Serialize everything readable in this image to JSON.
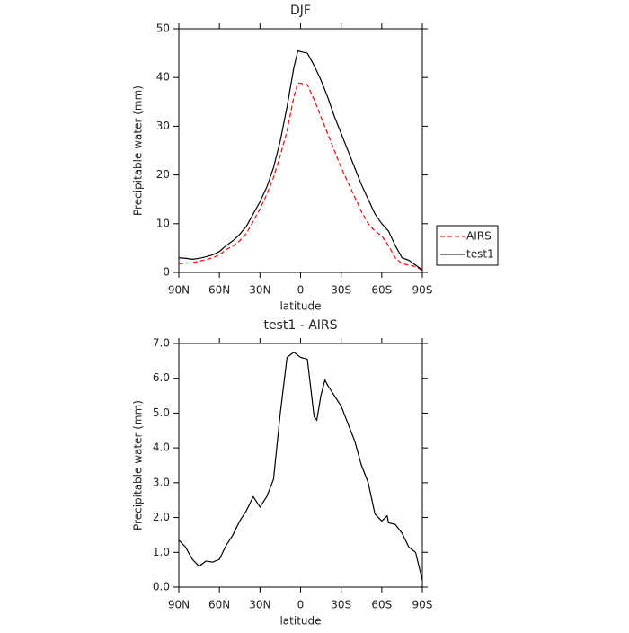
{
  "chart_data": [
    {
      "type": "line",
      "title": "DJF",
      "x_label": "latitude",
      "y_label": "Precipitable water (mm)",
      "xlim": [
        90,
        -90
      ],
      "xticks": [
        {
          "value": 90,
          "label": "90N"
        },
        {
          "value": 60,
          "label": "60N"
        },
        {
          "value": 30,
          "label": "30N"
        },
        0,
        {
          "value": -30,
          "label": "30S"
        },
        {
          "value": -60,
          "label": "60S"
        },
        {
          "value": -90,
          "label": "90S"
        }
      ],
      "ylim": [
        0,
        50
      ],
      "yticks": [
        0,
        10,
        20,
        30,
        40,
        50
      ],
      "legend": "right",
      "x": [
        90,
        85,
        80,
        75,
        70,
        65,
        60,
        55,
        50,
        45,
        40,
        35,
        30,
        25,
        20,
        15,
        10,
        5,
        2,
        0,
        -5,
        -10,
        -15,
        -20,
        -25,
        -30,
        -35,
        -40,
        -45,
        -50,
        -55,
        -60,
        -65,
        -70,
        -75,
        -80,
        -85,
        -90
      ],
      "series": [
        {
          "name": "AIRS",
          "color": "#ff0000",
          "dashed": true,
          "values": [
            1.8,
            1.9,
            2.0,
            2.3,
            2.6,
            3.0,
            3.6,
            4.7,
            5.4,
            6.5,
            8.0,
            10.5,
            13.0,
            16.0,
            19.5,
            24.0,
            29.0,
            36.0,
            38.9,
            38.8,
            38.5,
            35.5,
            32.0,
            28.5,
            25.0,
            21.5,
            18.5,
            15.5,
            12.5,
            10.0,
            8.5,
            7.5,
            5.5,
            3.0,
            1.8,
            1.5,
            1.2,
            0.4
          ]
        },
        {
          "name": "test1",
          "color": "#000000",
          "dashed": false,
          "values": [
            3.0,
            2.9,
            2.7,
            2.9,
            3.2,
            3.6,
            4.3,
            5.5,
            6.5,
            7.8,
            9.5,
            12.0,
            14.5,
            17.5,
            21.5,
            27.0,
            34.0,
            42.0,
            45.5,
            45.3,
            45.0,
            42.5,
            39.5,
            36.0,
            32.0,
            28.5,
            25.0,
            21.5,
            18.0,
            15.0,
            12.0,
            10.0,
            8.5,
            5.5,
            3.0,
            2.5,
            1.5,
            0.5
          ]
        }
      ]
    },
    {
      "type": "line",
      "title": "test1 - AIRS",
      "x_label": "latitude",
      "y_label": "Precipitable water (mm)",
      "xlim": [
        90,
        -90
      ],
      "xticks": [
        {
          "value": 90,
          "label": "90N"
        },
        {
          "value": 60,
          "label": "60N"
        },
        {
          "value": 30,
          "label": "30N"
        },
        0,
        {
          "value": -30,
          "label": "30S"
        },
        {
          "value": -60,
          "label": "60S"
        },
        {
          "value": -90,
          "label": "90S"
        }
      ],
      "ylim": [
        0,
        7
      ],
      "yticks": [
        {
          "value": 0,
          "label": "0.0"
        },
        {
          "value": 1,
          "label": "1.0"
        },
        {
          "value": 2,
          "label": "2.0"
        },
        {
          "value": 3,
          "label": "3.0"
        },
        {
          "value": 4,
          "label": "4.0"
        },
        {
          "value": 5,
          "label": "5.0"
        },
        {
          "value": 6,
          "label": "6.0"
        },
        {
          "value": 7,
          "label": "7.0"
        }
      ],
      "x": [
        90,
        85,
        80,
        75,
        70,
        65,
        60,
        55,
        50,
        45,
        40,
        35,
        30,
        25,
        20,
        15,
        10,
        5,
        0,
        -5,
        -10,
        -12,
        -15,
        -18,
        -20,
        -25,
        -30,
        -35,
        -40,
        -45,
        -50,
        -55,
        -60,
        -64,
        -65,
        -70,
        -75,
        -80,
        -85,
        -90
      ],
      "series": [
        {
          "name": "test1",
          "color": "#000000",
          "dashed": false,
          "values": [
            1.35,
            1.15,
            0.8,
            0.6,
            0.75,
            0.72,
            0.8,
            1.2,
            1.5,
            1.9,
            2.2,
            2.6,
            2.3,
            2.6,
            3.1,
            5.0,
            6.6,
            6.75,
            6.6,
            6.55,
            4.9,
            4.8,
            5.5,
            5.95,
            5.8,
            5.5,
            5.2,
            4.7,
            4.2,
            3.5,
            3.0,
            2.1,
            1.9,
            2.05,
            1.85,
            1.8,
            1.55,
            1.15,
            1.0,
            0.2
          ]
        }
      ]
    }
  ]
}
